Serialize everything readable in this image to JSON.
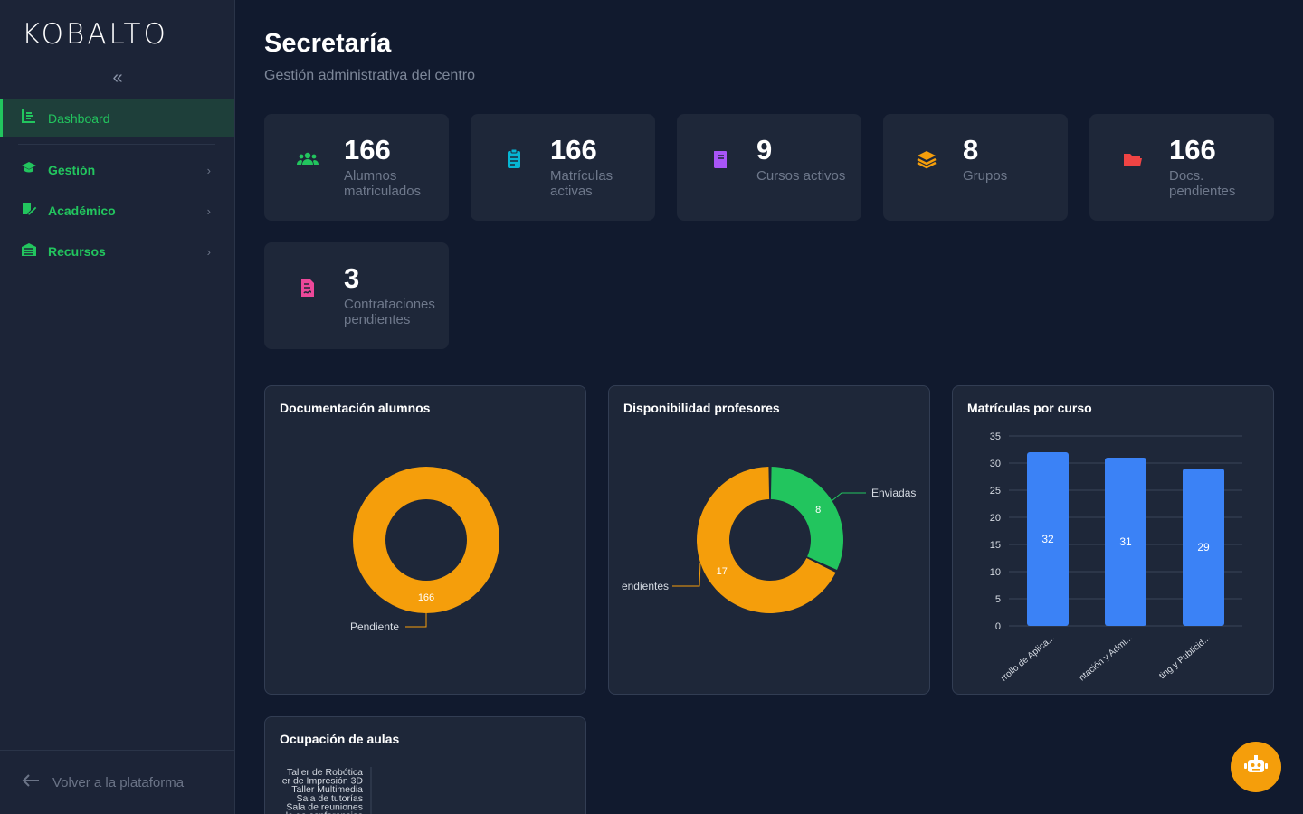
{
  "app": {
    "logo": "KOBALTO"
  },
  "sidebar": {
    "collapse_icon": "chevrons-left-icon",
    "active_item": {
      "label": "Dashboard",
      "icon": "dashboard-icon"
    },
    "items": [
      {
        "label": "Gestión",
        "icon": "graduation-cap-icon"
      },
      {
        "label": "Académico",
        "icon": "book-edit-icon"
      },
      {
        "label": "Recursos",
        "icon": "building-icon"
      }
    ],
    "footer": {
      "label": "Volver a la plataforma",
      "icon": "arrow-left-icon"
    }
  },
  "header": {
    "title": "Secretaría",
    "subtitle": "Gestión administrativa del centro"
  },
  "stats": [
    {
      "value": "166",
      "label": "Alumnos matriculados",
      "icon": "users-icon",
      "color": "#22c55e"
    },
    {
      "value": "166",
      "label": "Matrículas activas",
      "icon": "clipboard-icon",
      "color": "#06b6d4"
    },
    {
      "value": "9",
      "label": "Cursos activos",
      "icon": "book-icon",
      "color": "#a855f7"
    },
    {
      "value": "8",
      "label": "Grupos",
      "icon": "layers-icon",
      "color": "#f59e0b"
    },
    {
      "value": "166",
      "label": "Docs. pendientes",
      "icon": "folder-open-icon",
      "color": "#ef4444"
    },
    {
      "value": "3",
      "label": "Contrataciones pendientes",
      "icon": "file-contract-icon",
      "color": "#ec4899"
    }
  ],
  "panels": {
    "doc": {
      "title": "Documentación alumnos"
    },
    "disp": {
      "title": "Disponibilidad profesores"
    },
    "mat": {
      "title": "Matrículas por curso"
    },
    "ocu": {
      "title": "Ocupación de aulas"
    }
  },
  "chart_data": [
    {
      "type": "pie",
      "title": "Documentación alumnos",
      "categories": [
        "Pendiente"
      ],
      "values": [
        166
      ],
      "colors": [
        "#f59e0b"
      ]
    },
    {
      "type": "pie",
      "title": "Disponibilidad profesores",
      "categories": [
        "Enviadas",
        "endientes"
      ],
      "values": [
        8,
        17
      ],
      "colors": [
        "#22c55e",
        "#f59e0b"
      ]
    },
    {
      "type": "bar",
      "title": "Matrículas por curso",
      "categories": [
        "rrollo de Aplica...",
        "ntación y Admi...",
        "ting y Publicid..."
      ],
      "values": [
        32,
        31,
        29
      ],
      "ylim": [
        0,
        35
      ],
      "yticks": [
        0,
        5,
        10,
        15,
        20,
        25,
        30,
        35
      ],
      "color": "#3b82f6"
    },
    {
      "type": "bar",
      "title": "Ocupación de aulas",
      "categories": [
        "Taller de Robótica",
        "er de Impresión 3D",
        "Taller Multimedia",
        "Sala de tutorías",
        "Sala de reuniones",
        "la de conferencias"
      ]
    }
  ],
  "fab": {
    "icon": "robot-icon"
  }
}
